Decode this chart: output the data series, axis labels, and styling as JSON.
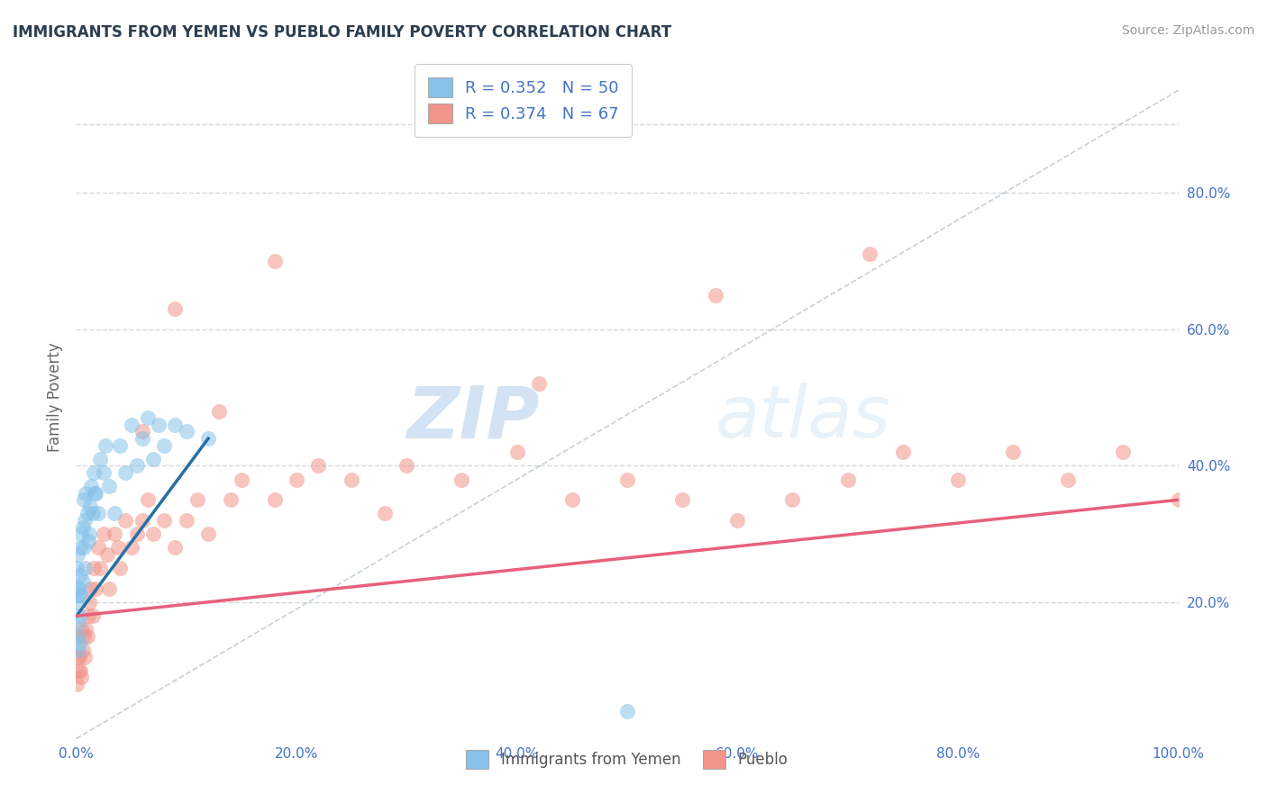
{
  "title": "IMMIGRANTS FROM YEMEN VS PUEBLO FAMILY POVERTY CORRELATION CHART",
  "source": "Source: ZipAtlas.com",
  "ylabel": "Family Poverty",
  "xlim": [
    0,
    1.0
  ],
  "ylim": [
    0.0,
    1.0
  ],
  "xtick_labels": [
    "0.0%",
    "20.0%",
    "40.0%",
    "60.0%",
    "80.0%",
    "100.0%"
  ],
  "xtick_values": [
    0.0,
    0.2,
    0.4,
    0.6,
    0.8,
    1.0
  ],
  "ytick_labels": [
    "20.0%",
    "40.0%",
    "60.0%",
    "80.0%"
  ],
  "ytick_values": [
    0.2,
    0.4,
    0.6,
    0.8
  ],
  "legend_labels": [
    "Immigrants from Yemen",
    "Pueblo"
  ],
  "legend_r1": "R = 0.352   N = 50",
  "legend_r2": "R = 0.374   N = 67",
  "blue_color": "#85c1e9",
  "pink_color": "#f1948a",
  "blue_line_color": "#2471a3",
  "pink_line_color": "#e8607a",
  "trendline_color": "#b0bec5",
  "background_color": "#ffffff",
  "grid_color": "#d5d8dc",
  "title_color": "#2c3e50",
  "watermark_zip": "ZIP",
  "watermark_atlas": "atlas",
  "blue_scatter_x": [
    0.0005,
    0.001,
    0.001,
    0.001,
    0.0015,
    0.002,
    0.002,
    0.002,
    0.003,
    0.003,
    0.003,
    0.004,
    0.004,
    0.005,
    0.005,
    0.006,
    0.006,
    0.007,
    0.007,
    0.008,
    0.008,
    0.009,
    0.01,
    0.011,
    0.012,
    0.013,
    0.014,
    0.015,
    0.016,
    0.017,
    0.018,
    0.02,
    0.022,
    0.025,
    0.027,
    0.03,
    0.035,
    0.04,
    0.045,
    0.05,
    0.055,
    0.06,
    0.065,
    0.07,
    0.075,
    0.08,
    0.09,
    0.1,
    0.12,
    0.5
  ],
  "blue_scatter_y": [
    0.25,
    0.15,
    0.2,
    0.27,
    0.22,
    0.13,
    0.17,
    0.21,
    0.14,
    0.18,
    0.22,
    0.24,
    0.28,
    0.21,
    0.3,
    0.23,
    0.31,
    0.28,
    0.35,
    0.25,
    0.32,
    0.36,
    0.33,
    0.29,
    0.3,
    0.34,
    0.37,
    0.33,
    0.39,
    0.36,
    0.36,
    0.33,
    0.41,
    0.39,
    0.43,
    0.37,
    0.33,
    0.43,
    0.39,
    0.46,
    0.4,
    0.44,
    0.47,
    0.41,
    0.46,
    0.43,
    0.46,
    0.45,
    0.44,
    0.04
  ],
  "pink_scatter_x": [
    0.0005,
    0.001,
    0.002,
    0.002,
    0.003,
    0.004,
    0.005,
    0.005,
    0.006,
    0.007,
    0.008,
    0.009,
    0.01,
    0.011,
    0.012,
    0.013,
    0.015,
    0.016,
    0.018,
    0.02,
    0.022,
    0.025,
    0.028,
    0.03,
    0.035,
    0.038,
    0.04,
    0.045,
    0.05,
    0.055,
    0.06,
    0.065,
    0.07,
    0.08,
    0.09,
    0.1,
    0.11,
    0.12,
    0.14,
    0.15,
    0.18,
    0.2,
    0.22,
    0.25,
    0.3,
    0.35,
    0.4,
    0.45,
    0.5,
    0.55,
    0.6,
    0.65,
    0.7,
    0.75,
    0.8,
    0.85,
    0.9,
    0.95,
    1.0,
    0.06,
    0.09,
    0.13,
    0.18,
    0.28,
    0.42,
    0.58,
    0.72
  ],
  "pink_scatter_y": [
    0.08,
    0.12,
    0.1,
    0.15,
    0.12,
    0.1,
    0.09,
    0.16,
    0.13,
    0.15,
    0.12,
    0.16,
    0.15,
    0.18,
    0.2,
    0.22,
    0.18,
    0.25,
    0.22,
    0.28,
    0.25,
    0.3,
    0.27,
    0.22,
    0.3,
    0.28,
    0.25,
    0.32,
    0.28,
    0.3,
    0.32,
    0.35,
    0.3,
    0.32,
    0.28,
    0.32,
    0.35,
    0.3,
    0.35,
    0.38,
    0.35,
    0.38,
    0.4,
    0.38,
    0.4,
    0.38,
    0.42,
    0.35,
    0.38,
    0.35,
    0.32,
    0.35,
    0.38,
    0.42,
    0.38,
    0.42,
    0.38,
    0.42,
    0.35,
    0.45,
    0.63,
    0.48,
    0.7,
    0.33,
    0.52,
    0.65,
    0.71
  ],
  "blue_trend_x": [
    0.0005,
    0.12
  ],
  "blue_trend_y": [
    0.18,
    0.44
  ],
  "pink_trend_x": [
    0.0005,
    1.0
  ],
  "pink_trend_y": [
    0.18,
    0.35
  ]
}
